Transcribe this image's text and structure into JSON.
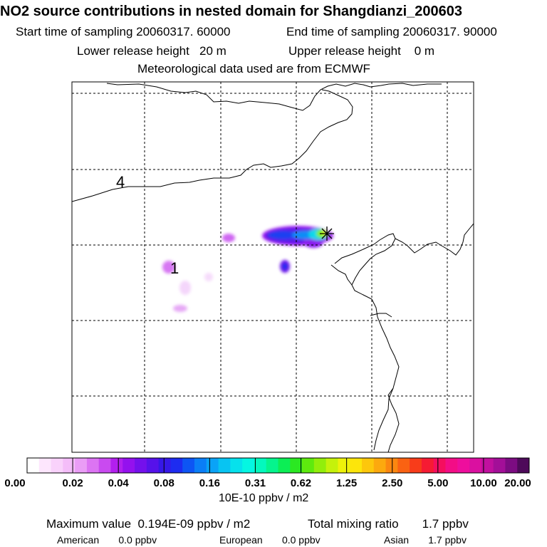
{
  "title": "NO2 source contributions in nested domain for Shangdianzi_200603",
  "sampling": {
    "start": "Start time of sampling 20060317. 60000",
    "end": "End time of sampling 20060317. 90000"
  },
  "release": {
    "lower": "Lower release height   20 m",
    "upper": "Upper release height    0 m"
  },
  "met": "Meteorological data used are from ECMWF",
  "map": {
    "region_labels": [
      "4",
      "1"
    ]
  },
  "colorbar": {
    "labels": [
      "0.00",
      "0.02",
      "0.04",
      "0.08",
      "0.16",
      "0.31",
      "0.62",
      "1.25",
      "2.50",
      "5.00",
      "10.00",
      "20.00"
    ],
    "unit": "10E-10 ppbv / m2",
    "colors": [
      "#ffffff",
      "#fde6fd",
      "#f9d2fb",
      "#f4bdf9",
      "#ea9df6",
      "#dc74f3",
      "#c94af0",
      "#b21fee",
      "#9411ee",
      "#7410ec",
      "#5612ea",
      "#3618e8",
      "#1d2cf0",
      "#0d55f4",
      "#0a7ef7",
      "#0aa3f7",
      "#08c4f2",
      "#06e1ec",
      "#05f6e2",
      "#04f8bd",
      "#05f48d",
      "#0cee55",
      "#2be822",
      "#5eea0e",
      "#92ee0b",
      "#c5f20b",
      "#eef20a",
      "#fde50b",
      "#fdc70c",
      "#fca90e",
      "#fb8710",
      "#fa6212",
      "#f83c1a",
      "#f61b33",
      "#f50e5e",
      "#f30d86",
      "#ee0e9d",
      "#da10a0",
      "#c1109f",
      "#a30f98",
      "#7c0c82",
      "#4e0a5a"
    ]
  },
  "summary": {
    "max_value": "Maximum value  0.194E-09 ppbv / m2",
    "total": "Total mixing ratio       1.7 ppbv",
    "american": "American       0.0 ppbv",
    "european": "European       0.0 ppbv",
    "asian": "Asian       1.7 ppbv"
  }
}
